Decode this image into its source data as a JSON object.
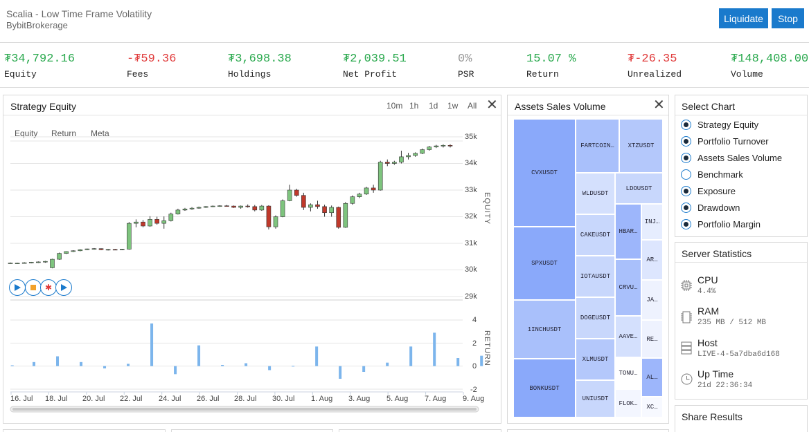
{
  "header": {
    "title": "Scalia - Low Time Frame Volatility",
    "subtitle": "BybitBrokerage",
    "buttons": {
      "liquidate": "Liquidate",
      "stop": "Stop"
    }
  },
  "stats": [
    {
      "value": "₮34,792.16",
      "label": "Equity",
      "tone": "pos"
    },
    {
      "value": "-₮59.36",
      "label": "Fees",
      "tone": "neg"
    },
    {
      "value": "₮3,698.38",
      "label": "Holdings",
      "tone": "pos"
    },
    {
      "value": "₮2,039.51",
      "label": "Net Profit",
      "tone": "pos"
    },
    {
      "value": "0%",
      "label": "PSR",
      "tone": "neu"
    },
    {
      "value": "15.07 %",
      "label": "Return",
      "tone": "pos"
    },
    {
      "value": "₮-26.35",
      "label": "Unrealized",
      "tone": "neg"
    },
    {
      "value": "₮148,408.00",
      "label": "Volume",
      "tone": "pos"
    }
  ],
  "equity_panel": {
    "title": "Strategy Equity",
    "ranges": [
      "10m",
      "1h",
      "1d",
      "1w",
      "All"
    ],
    "chart_tabs": [
      "Equity",
      "Return",
      "Meta"
    ],
    "equity_axis_label": "EQUITY",
    "return_axis_label": "RETURN"
  },
  "assets_panel": {
    "title": "Assets Sales Volume"
  },
  "select_chart": {
    "title": "Select Chart",
    "options": [
      {
        "label": "Strategy Equity",
        "checked": true
      },
      {
        "label": "Portfolio Turnover",
        "checked": true
      },
      {
        "label": "Assets Sales Volume",
        "checked": true
      },
      {
        "label": "Benchmark",
        "checked": false
      },
      {
        "label": "Exposure",
        "checked": true
      },
      {
        "label": "Drawdown",
        "checked": true
      },
      {
        "label": "Portfolio Margin",
        "checked": true
      }
    ]
  },
  "server_stats": {
    "title": "Server Statistics",
    "items": [
      {
        "name": "CPU",
        "value": "4.4%",
        "icon": "cpu-icon"
      },
      {
        "name": "RAM",
        "value": "235 MB / 512 MB",
        "icon": "ram-icon"
      },
      {
        "name": "Host",
        "value": "LIVE-4-5a7dba6d168",
        "icon": "server-icon"
      },
      {
        "name": "Up Time",
        "value": "21d 22:36:34",
        "icon": "clock-icon"
      }
    ]
  },
  "share_results": {
    "title": "Share Results"
  },
  "treemap": {
    "labels": [
      "CVXUSDT",
      "SPXUSDT",
      "1INCHUSDT",
      "BONKUSDT",
      "FARTCOIN…",
      "XTZUSDT",
      "WLDUSDT",
      "LDOUSDT",
      "CAKEUSDT",
      "HBAR…",
      "INJ…",
      "IOTAUSDT",
      "AR…",
      "CRVU…",
      "DOGEUSDT",
      "JA…",
      "AAVE…",
      "RE…",
      "XLMUSDT",
      "TONU…",
      "AL…",
      "UNIUSDT",
      "FLOK…",
      "XC…"
    ]
  },
  "chart_data": {
    "type": "candlestick",
    "x_tick_labels": [
      "16. Jul",
      "18. Jul",
      "20. Jul",
      "22. Jul",
      "24. Jul",
      "26. Jul",
      "28. Jul",
      "30. Jul",
      "1. Aug",
      "3. Aug",
      "5. Aug",
      "7. Aug",
      "9. Aug"
    ],
    "equity_y_ticks": [
      "35k",
      "34k",
      "33k",
      "32k",
      "31k",
      "30k",
      "29k"
    ],
    "equity_ylim": [
      28900,
      35200
    ],
    "return_y_ticks": [
      "4",
      "2",
      "0",
      "-2"
    ],
    "return_ylim": [
      -2,
      4
    ],
    "candles": [
      {
        "o": 30250,
        "h": 30280,
        "l": 30230,
        "c": 30260
      },
      {
        "o": 30250,
        "h": 30270,
        "l": 30240,
        "c": 30255
      },
      {
        "o": 30255,
        "h": 30290,
        "l": 30240,
        "c": 30270
      },
      {
        "o": 30270,
        "h": 30300,
        "l": 30250,
        "c": 30290
      },
      {
        "o": 30290,
        "h": 30320,
        "l": 30260,
        "c": 30300
      },
      {
        "o": 30300,
        "h": 30340,
        "l": 30270,
        "c": 30320
      },
      {
        "o": 30080,
        "h": 30420,
        "l": 30060,
        "c": 30400
      },
      {
        "o": 30400,
        "h": 30650,
        "l": 30380,
        "c": 30620
      },
      {
        "o": 30620,
        "h": 30700,
        "l": 30600,
        "c": 30690
      },
      {
        "o": 30690,
        "h": 30740,
        "l": 30670,
        "c": 30720
      },
      {
        "o": 30720,
        "h": 30780,
        "l": 30700,
        "c": 30760
      },
      {
        "o": 30760,
        "h": 30800,
        "l": 30740,
        "c": 30790
      },
      {
        "o": 30790,
        "h": 30820,
        "l": 30760,
        "c": 30800
      },
      {
        "o": 30800,
        "h": 30810,
        "l": 30740,
        "c": 30760
      },
      {
        "o": 30760,
        "h": 30790,
        "l": 30730,
        "c": 30770
      },
      {
        "o": 30770,
        "h": 30790,
        "l": 30740,
        "c": 30760
      },
      {
        "o": 30760,
        "h": 30790,
        "l": 30740,
        "c": 30780
      },
      {
        "o": 30780,
        "h": 31800,
        "l": 30760,
        "c": 31750
      },
      {
        "o": 31750,
        "h": 31900,
        "l": 31600,
        "c": 31800
      },
      {
        "o": 31800,
        "h": 31880,
        "l": 31600,
        "c": 31650
      },
      {
        "o": 31650,
        "h": 32020,
        "l": 31620,
        "c": 31900
      },
      {
        "o": 31900,
        "h": 32000,
        "l": 31700,
        "c": 31750
      },
      {
        "o": 31750,
        "h": 32010,
        "l": 31550,
        "c": 31850
      },
      {
        "o": 31850,
        "h": 32150,
        "l": 31820,
        "c": 32100
      },
      {
        "o": 32100,
        "h": 32300,
        "l": 32080,
        "c": 32250
      },
      {
        "o": 32250,
        "h": 32330,
        "l": 32220,
        "c": 32290
      },
      {
        "o": 32290,
        "h": 32360,
        "l": 32260,
        "c": 32320
      },
      {
        "o": 32320,
        "h": 32380,
        "l": 32300,
        "c": 32350
      },
      {
        "o": 32350,
        "h": 32400,
        "l": 32330,
        "c": 32380
      },
      {
        "o": 32380,
        "h": 32420,
        "l": 32360,
        "c": 32400
      },
      {
        "o": 32400,
        "h": 32430,
        "l": 32370,
        "c": 32410
      },
      {
        "o": 32410,
        "h": 32440,
        "l": 32380,
        "c": 32400
      },
      {
        "o": 32400,
        "h": 32420,
        "l": 32330,
        "c": 32350
      },
      {
        "o": 32350,
        "h": 32420,
        "l": 32300,
        "c": 32400
      },
      {
        "o": 32400,
        "h": 32460,
        "l": 32340,
        "c": 32380
      },
      {
        "o": 32380,
        "h": 32440,
        "l": 32200,
        "c": 32250
      },
      {
        "o": 32250,
        "h": 32440,
        "l": 32220,
        "c": 32400
      },
      {
        "o": 32400,
        "h": 32430,
        "l": 31520,
        "c": 31620
      },
      {
        "o": 31620,
        "h": 32050,
        "l": 31550,
        "c": 32000
      },
      {
        "o": 32000,
        "h": 32650,
        "l": 31980,
        "c": 32600
      },
      {
        "o": 32600,
        "h": 33200,
        "l": 32580,
        "c": 33000
      },
      {
        "o": 33000,
        "h": 33050,
        "l": 32750,
        "c": 32800
      },
      {
        "o": 32800,
        "h": 32900,
        "l": 32250,
        "c": 32350
      },
      {
        "o": 32350,
        "h": 32500,
        "l": 32200,
        "c": 32450
      },
      {
        "o": 32450,
        "h": 32600,
        "l": 32300,
        "c": 32380
      },
      {
        "o": 32380,
        "h": 32450,
        "l": 32000,
        "c": 32150
      },
      {
        "o": 32150,
        "h": 32420,
        "l": 32000,
        "c": 32350
      },
      {
        "o": 32350,
        "h": 32380,
        "l": 31550,
        "c": 31600
      },
      {
        "o": 31600,
        "h": 32550,
        "l": 31580,
        "c": 32500
      },
      {
        "o": 32500,
        "h": 32800,
        "l": 32450,
        "c": 32750
      },
      {
        "o": 32750,
        "h": 32900,
        "l": 32700,
        "c": 32850
      },
      {
        "o": 32850,
        "h": 33120,
        "l": 32820,
        "c": 33080
      },
      {
        "o": 33080,
        "h": 33200,
        "l": 32900,
        "c": 33000
      },
      {
        "o": 33000,
        "h": 34100,
        "l": 32980,
        "c": 34050
      },
      {
        "o": 34050,
        "h": 34150,
        "l": 33900,
        "c": 34000
      },
      {
        "o": 34000,
        "h": 34100,
        "l": 33950,
        "c": 34050
      },
      {
        "o": 34050,
        "h": 34480,
        "l": 34000,
        "c": 34250
      },
      {
        "o": 34250,
        "h": 34400,
        "l": 34150,
        "c": 34300
      },
      {
        "o": 34300,
        "h": 34420,
        "l": 34250,
        "c": 34380
      },
      {
        "o": 34380,
        "h": 34560,
        "l": 34350,
        "c": 34520
      },
      {
        "o": 34520,
        "h": 34660,
        "l": 34480,
        "c": 34620
      },
      {
        "o": 34620,
        "h": 34700,
        "l": 34580,
        "c": 34660
      },
      {
        "o": 34660,
        "h": 34720,
        "l": 34600,
        "c": 34680
      },
      {
        "o": 34680,
        "h": 34720,
        "l": 34600,
        "c": 34660
      }
    ],
    "returns": [
      {
        "d": 0.1,
        "v": 0.07
      },
      {
        "d": 1.25,
        "v": 0.35
      },
      {
        "d": 2.5,
        "v": 0.85
      },
      {
        "d": 3.75,
        "v": 0.35
      },
      {
        "d": 5.0,
        "v": -0.2
      },
      {
        "d": 6.25,
        "v": 0.2
      },
      {
        "d": 7.5,
        "v": 3.7
      },
      {
        "d": 8.75,
        "v": -0.7
      },
      {
        "d": 10.0,
        "v": 1.8
      },
      {
        "d": 11.25,
        "v": 0.1
      },
      {
        "d": 12.5,
        "v": 0.25
      },
      {
        "d": 13.75,
        "v": -0.35
      },
      {
        "d": 15.0,
        "v": 0.02
      },
      {
        "d": 16.25,
        "v": 1.7
      },
      {
        "d": 17.5,
        "v": -1.1
      },
      {
        "d": 18.75,
        "v": -0.5
      },
      {
        "d": 20.0,
        "v": 0.3
      },
      {
        "d": 21.25,
        "v": 1.7
      },
      {
        "d": 22.5,
        "v": 2.9
      },
      {
        "d": 23.75,
        "v": 0.7
      },
      {
        "d": 25.0,
        "v": 0.9
      }
    ]
  }
}
